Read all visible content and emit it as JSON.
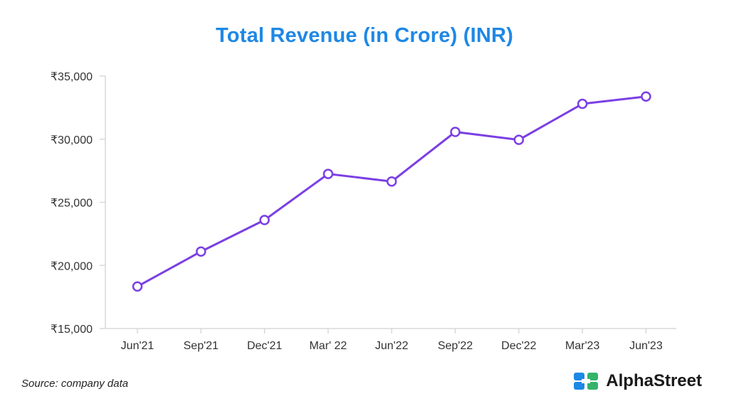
{
  "chart_data": {
    "type": "line",
    "title": "Total Revenue (in Crore) (INR)",
    "categories": [
      "Jun'21",
      "Sep'21",
      "Dec'21",
      "Mar' 22",
      "Jun'22",
      "Sep'22",
      "Dec'22",
      "Mar'23",
      "Jun'23"
    ],
    "series": [
      {
        "name": "Total Revenue",
        "values": [
          18333,
          21100,
          23600,
          27250,
          26650,
          30580,
          29950,
          32800,
          33380
        ]
      }
    ],
    "ylim": [
      15000,
      35000
    ],
    "yticks": [
      15000,
      20000,
      25000,
      30000,
      35000
    ],
    "ytick_labels": [
      "₹15,000",
      "₹20,000",
      "₹25,000",
      "₹30,000",
      "₹35,000"
    ],
    "xlabel": "",
    "ylabel": "",
    "grid": false,
    "line_color": "#7b3fe4"
  },
  "footer": {
    "source": "Source: company data",
    "brand": "AlphaStreet"
  },
  "colors": {
    "title": "#1e88e5",
    "axis": "#d8d8d8",
    "logo_blue": "#1e88e5",
    "logo_green": "#34b36b"
  }
}
